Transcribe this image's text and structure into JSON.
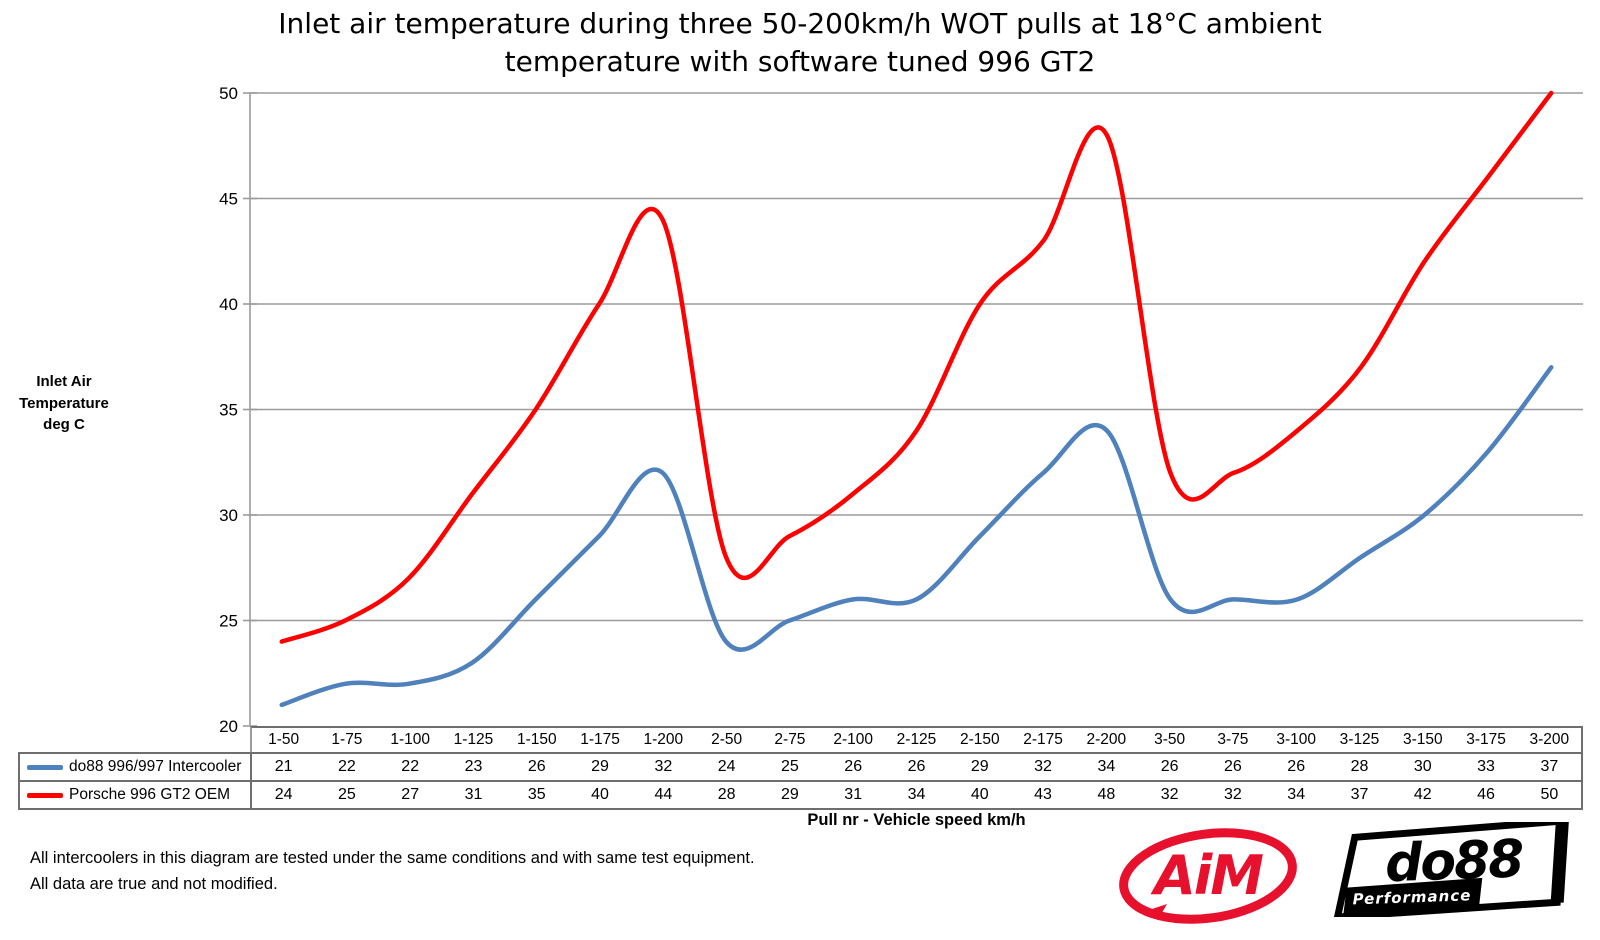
{
  "title": "Inlet air temperature during three 50-200km/h WOT pulls at 18°C ambient\ntemperature with software tuned 996 GT2",
  "y_axis_label": "Inlet Air\nTemperature\ndeg C",
  "footer": {
    "note": "All intercoolers in this diagram are tested under the same conditions and with same test equipment.\nAll data are true and not modified."
  },
  "logos": {
    "aim_text": "AiM",
    "do88_text": "do88",
    "do88_sub": "Performance"
  },
  "colors": {
    "do88_series": "#4F81BD",
    "oem_series": "#FF0000",
    "gridline": "#9b9b9b",
    "table_border": "#6e6e6e",
    "logo_red": "#E8112D"
  },
  "chart_data": {
    "type": "line",
    "title": "Inlet air temperature during three 50-200km/h WOT pulls at 18°C ambient temperature with software tuned 996 GT2",
    "xlabel": "Pull nr - Vehicle speed km/h",
    "ylabel": "Inlet Air Temperature deg C",
    "ylim": [
      20,
      50
    ],
    "ytick_step": 5,
    "yticks": [
      20,
      25,
      30,
      35,
      40,
      45,
      50
    ],
    "grid": true,
    "smoothed": true,
    "legend_position": "table-left",
    "categories": [
      "1-50",
      "1-75",
      "1-100",
      "1-125",
      "1-150",
      "1-175",
      "1-200",
      "2-50",
      "2-75",
      "2-100",
      "2-125",
      "2-150",
      "2-175",
      "2-200",
      "3-50",
      "3-75",
      "3-100",
      "3-125",
      "3-150",
      "3-175",
      "3-200"
    ],
    "series": [
      {
        "name": "do88 996/997 Intercooler",
        "color": "#4F81BD",
        "values": [
          21,
          22,
          22,
          23,
          26,
          29,
          32,
          24,
          25,
          26,
          26,
          29,
          32,
          34,
          26,
          26,
          26,
          28,
          30,
          33,
          37
        ]
      },
      {
        "name": "Porsche 996 GT2 OEM",
        "color": "#FF0000",
        "values": [
          24,
          25,
          27,
          31,
          35,
          40,
          44,
          28,
          29,
          31,
          34,
          40,
          43,
          48,
          32,
          32,
          34,
          37,
          42,
          46,
          50
        ]
      }
    ]
  }
}
